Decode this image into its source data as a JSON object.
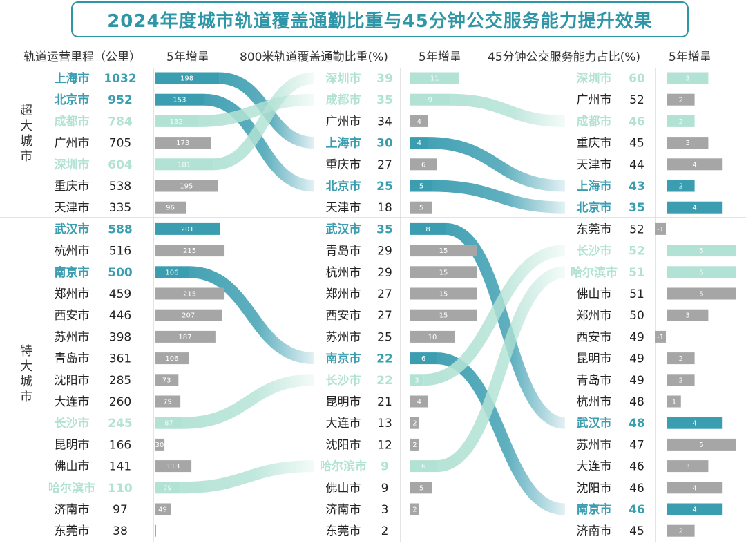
{
  "title": "2024年度城市轨道覆盖通勤比重与45分钟公交服务能力提升效果",
  "headers": {
    "mileage": "轨道运营里程（公里）",
    "growth1": "5年增量",
    "coverage": "800米轨道覆盖通勤比重(%)",
    "growth2": "5年增量",
    "service": "45分钟公交服务能力占比(%)",
    "growth3": "5年增量"
  },
  "groups": {
    "mega": "超大城市",
    "super": "特大城市"
  },
  "colors": {
    "dark": "#3a9db0",
    "light": "#b2e2d4",
    "gray": "#a6a6a6"
  },
  "chart_data": {
    "type": "table",
    "columns": [
      {
        "name": "轨道运营里程（公里）",
        "rows": [
          {
            "city": "上海市",
            "value": "1032",
            "growth": 198,
            "hl": "dark"
          },
          {
            "city": "北京市",
            "value": "952",
            "growth": 153,
            "hl": "dark"
          },
          {
            "city": "成都市",
            "value": "784",
            "growth": 132,
            "hl": "light"
          },
          {
            "city": "广州市",
            "value": "705",
            "growth": 173,
            "hl": ""
          },
          {
            "city": "深圳市",
            "value": "604",
            "growth": 181,
            "hl": "light"
          },
          {
            "city": "重庆市",
            "value": "538",
            "growth": 195,
            "hl": ""
          },
          {
            "city": "天津市",
            "value": "335",
            "growth": 96,
            "hl": ""
          },
          {
            "city": "武汉市",
            "value": "588",
            "growth": 201,
            "hl": "dark"
          },
          {
            "city": "杭州市",
            "value": "516",
            "growth": 215,
            "hl": ""
          },
          {
            "city": "南京市",
            "value": "500",
            "growth": 106,
            "hl": "dark"
          },
          {
            "city": "郑州市",
            "value": "459",
            "growth": 215,
            "hl": ""
          },
          {
            "city": "西安市",
            "value": "446",
            "growth": 207,
            "hl": ""
          },
          {
            "city": "苏州市",
            "value": "398",
            "growth": 187,
            "hl": ""
          },
          {
            "city": "青岛市",
            "value": "361",
            "growth": 106,
            "hl": ""
          },
          {
            "city": "沈阳市",
            "value": "285",
            "growth": 73,
            "hl": ""
          },
          {
            "city": "大连市",
            "value": "260",
            "growth": 79,
            "hl": ""
          },
          {
            "city": "长沙市",
            "value": "245",
            "growth": 87,
            "hl": "light"
          },
          {
            "city": "昆明市",
            "value": "166",
            "growth": 30,
            "hl": ""
          },
          {
            "city": "佛山市",
            "value": "141",
            "growth": 113,
            "hl": ""
          },
          {
            "city": "哈尔滨市",
            "value": "110",
            "growth": 79,
            "hl": "light"
          },
          {
            "city": "济南市",
            "value": "97",
            "growth": 49,
            "hl": ""
          },
          {
            "city": "东莞市",
            "value": "38",
            "growth": 2,
            "hl": ""
          }
        ]
      },
      {
        "name": "800米轨道覆盖通勤比重(%)",
        "rows": [
          {
            "city": "深圳市",
            "value": "39",
            "growth": 11,
            "hl": "light"
          },
          {
            "city": "成都市",
            "value": "35",
            "growth": 9,
            "hl": "light"
          },
          {
            "city": "广州市",
            "value": "34",
            "growth": 4,
            "hl": ""
          },
          {
            "city": "上海市",
            "value": "30",
            "growth": 4,
            "hl": "dark"
          },
          {
            "city": "重庆市",
            "value": "27",
            "growth": 6,
            "hl": ""
          },
          {
            "city": "北京市",
            "value": "25",
            "growth": 5,
            "hl": "dark"
          },
          {
            "city": "天津市",
            "value": "18",
            "growth": 5,
            "hl": ""
          },
          {
            "city": "武汉市",
            "value": "35",
            "growth": 8,
            "hl": "dark"
          },
          {
            "city": "青岛市",
            "value": "29",
            "growth": 15,
            "hl": ""
          },
          {
            "city": "杭州市",
            "value": "29",
            "growth": 15,
            "hl": ""
          },
          {
            "city": "郑州市",
            "value": "27",
            "growth": 15,
            "hl": ""
          },
          {
            "city": "西安市",
            "value": "27",
            "growth": 15,
            "hl": ""
          },
          {
            "city": "苏州市",
            "value": "25",
            "growth": 10,
            "hl": ""
          },
          {
            "city": "南京市",
            "value": "22",
            "growth": 6,
            "hl": "dark"
          },
          {
            "city": "长沙市",
            "value": "22",
            "growth": 3,
            "hl": "light"
          },
          {
            "city": "昆明市",
            "value": "21",
            "growth": 4,
            "hl": ""
          },
          {
            "city": "大连市",
            "value": "13",
            "growth": 2,
            "hl": ""
          },
          {
            "city": "沈阳市",
            "value": "12",
            "growth": 2,
            "hl": ""
          },
          {
            "city": "哈尔滨市",
            "value": "9",
            "growth": 6,
            "hl": "light"
          },
          {
            "city": "佛山市",
            "value": "9",
            "growth": 5,
            "hl": ""
          },
          {
            "city": "济南市",
            "value": "3",
            "growth": 2,
            "hl": ""
          },
          {
            "city": "东莞市",
            "value": "2",
            "growth": null,
            "hl": ""
          }
        ]
      },
      {
        "name": "45分钟公交服务能力占比(%)",
        "rows": [
          {
            "city": "深圳市",
            "value": "60",
            "growth": 3,
            "hl": "light"
          },
          {
            "city": "广州市",
            "value": "52",
            "growth": 2,
            "hl": ""
          },
          {
            "city": "成都市",
            "value": "46",
            "growth": 2,
            "hl": "light"
          },
          {
            "city": "重庆市",
            "value": "45",
            "growth": 3,
            "hl": ""
          },
          {
            "city": "天津市",
            "value": "44",
            "growth": 4,
            "hl": ""
          },
          {
            "city": "上海市",
            "value": "43",
            "growth": 2,
            "hl": "dark"
          },
          {
            "city": "北京市",
            "value": "35",
            "growth": 4,
            "hl": "dark"
          },
          {
            "city": "东莞市",
            "value": "52",
            "growth": -1,
            "hl": ""
          },
          {
            "city": "长沙市",
            "value": "52",
            "growth": 5,
            "hl": "light"
          },
          {
            "city": "哈尔滨市",
            "value": "51",
            "growth": 5,
            "hl": "light"
          },
          {
            "city": "佛山市",
            "value": "51",
            "growth": 5,
            "hl": ""
          },
          {
            "city": "郑州市",
            "value": "50",
            "growth": 3,
            "hl": ""
          },
          {
            "city": "西安市",
            "value": "49",
            "growth": -1,
            "hl": ""
          },
          {
            "city": "昆明市",
            "value": "49",
            "growth": 2,
            "hl": ""
          },
          {
            "city": "青岛市",
            "value": "49",
            "growth": 2,
            "hl": ""
          },
          {
            "city": "杭州市",
            "value": "48",
            "growth": 1,
            "hl": ""
          },
          {
            "city": "武汉市",
            "value": "48",
            "growth": 4,
            "hl": "dark"
          },
          {
            "city": "苏州市",
            "value": "47",
            "growth": 5,
            "hl": ""
          },
          {
            "city": "大连市",
            "value": "46",
            "growth": 3,
            "hl": ""
          },
          {
            "city": "沈阳市",
            "value": "46",
            "growth": 4,
            "hl": ""
          },
          {
            "city": "南京市",
            "value": "46",
            "growth": 4,
            "hl": "dark"
          },
          {
            "city": "济南市",
            "value": "45",
            "growth": 2,
            "hl": ""
          }
        ]
      }
    ]
  }
}
